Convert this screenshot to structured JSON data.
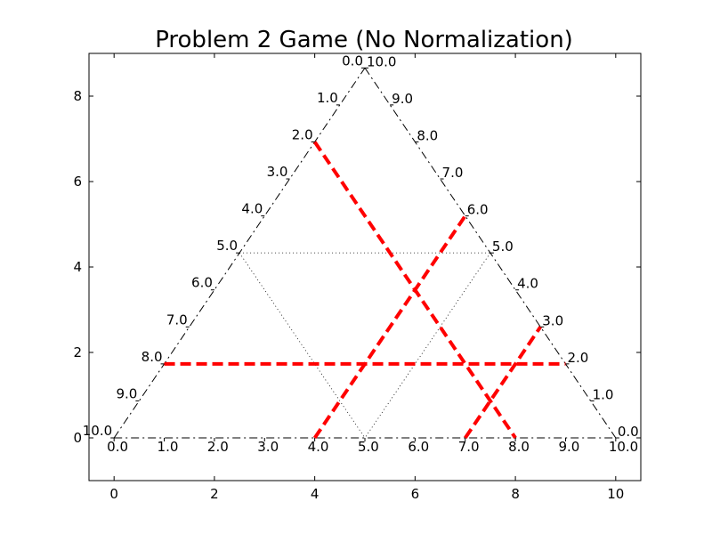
{
  "chart_data": {
    "type": "line",
    "title": "Problem 2 Game (No Normalization)",
    "xlabel": "",
    "ylabel": "",
    "xlim": [
      -0.5,
      10.5
    ],
    "ylim": [
      -1,
      9
    ],
    "xticks": [
      0,
      2,
      4,
      6,
      8,
      10
    ],
    "yticks": [
      0,
      2,
      4,
      6,
      8
    ],
    "grid": false,
    "triangle": {
      "edges": [
        {
          "from": [
            0,
            0
          ],
          "to": [
            5,
            8.66
          ],
          "style": "dashdot",
          "color": "#000000"
        },
        {
          "from": [
            5,
            8.66
          ],
          "to": [
            10,
            0
          ],
          "style": "dashdot",
          "color": "#000000"
        },
        {
          "from": [
            0,
            0
          ],
          "to": [
            10,
            0
          ],
          "style": "dashdot",
          "color": "#000000"
        }
      ],
      "inner_lines": [
        {
          "from": [
            2.5,
            4.33
          ],
          "to": [
            7.5,
            4.33
          ]
        },
        {
          "from": [
            2.5,
            4.33
          ],
          "to": [
            5,
            0
          ]
        },
        {
          "from": [
            7.5,
            4.33
          ],
          "to": [
            5,
            0
          ]
        }
      ],
      "left_edge_labels": [
        "0.0",
        "1.0",
        "2.0",
        "3.0",
        "4.0",
        "5.0",
        "6.0",
        "7.0",
        "8.0",
        "9.0",
        "10.0"
      ],
      "right_edge_labels": [
        "10.0",
        "9.0",
        "8.0",
        "7.0",
        "6.0",
        "5.0",
        "4.0",
        "3.0",
        "2.0",
        "1.0",
        "0.0"
      ],
      "bottom_edge_labels": [
        "0.0",
        "1.0",
        "2.0",
        "3.0",
        "4.0",
        "5.0",
        "6.0",
        "7.0",
        "8.0",
        "9.0",
        "10.0"
      ]
    },
    "series": [
      {
        "x": [
          4.0,
          7.0
        ],
        "y": [
          0.0,
          5.196
        ],
        "color": "#ff0000",
        "style": "dashed"
      },
      {
        "x": [
          7.0,
          8.5
        ],
        "y": [
          0.0,
          2.598
        ],
        "color": "#ff0000",
        "style": "dashed"
      },
      {
        "x": [
          4.0,
          8.0
        ],
        "y": [
          6.928,
          0.0
        ],
        "color": "#ff0000",
        "style": "dashed"
      },
      {
        "x": [
          1.0,
          9.0
        ],
        "y": [
          1.732,
          1.732
        ],
        "color": "#ff0000",
        "style": "dashed"
      }
    ]
  }
}
